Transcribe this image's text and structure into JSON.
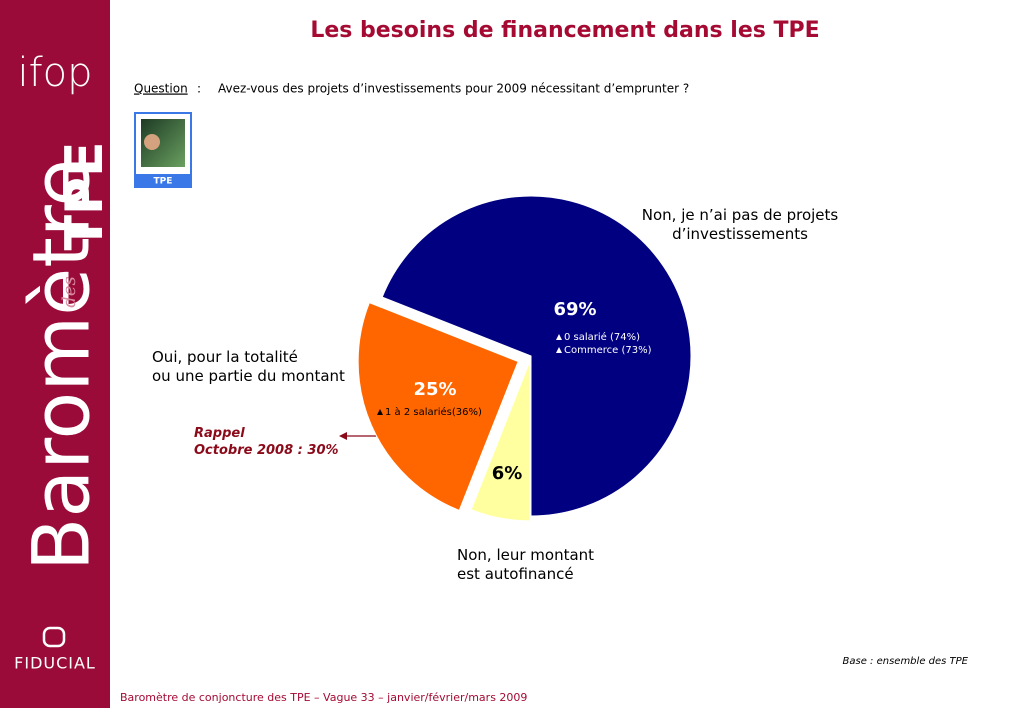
{
  "sidebar": {
    "logo": "ifop",
    "brand_main": "Baromètre",
    "brand_small": "des",
    "brand_bold": "TPE",
    "partner": "FIDUCIAL"
  },
  "question": {
    "label": "Question",
    "separator": ":",
    "text": "Avez-vous des projets d’investissements pour 2009 nécessitant d’emprunter ?"
  },
  "badge": "TPE",
  "chart_data": {
    "type": "pie",
    "title": "Les besoins de financement dans les TPE",
    "categories": [
      "Non,  leur montant\nest autofinancé",
      "Oui, pour la totalité\nou une partie du montant",
      "Non, je n’ai pas de projets\nd’investissements"
    ],
    "values": [
      6,
      25,
      69
    ],
    "value_labels": [
      "6%",
      "25%",
      "69%"
    ],
    "colors": [
      "#ffffa0",
      "#ff6600",
      "#000080"
    ],
    "annotations": [
      {
        "text": "1 à 2 salariés(36%)"
      },
      {
        "text": "0 salarié (74%)"
      },
      {
        "text": "Commerce (73%)"
      },
      {
        "text": "Rappel\nOctobre 2008 : 30%"
      }
    ]
  },
  "base_note": "Base : ensemble des TPE",
  "footer": "Baromètre de conjoncture des TPE – Vague 33 – janvier/février/mars 2009"
}
